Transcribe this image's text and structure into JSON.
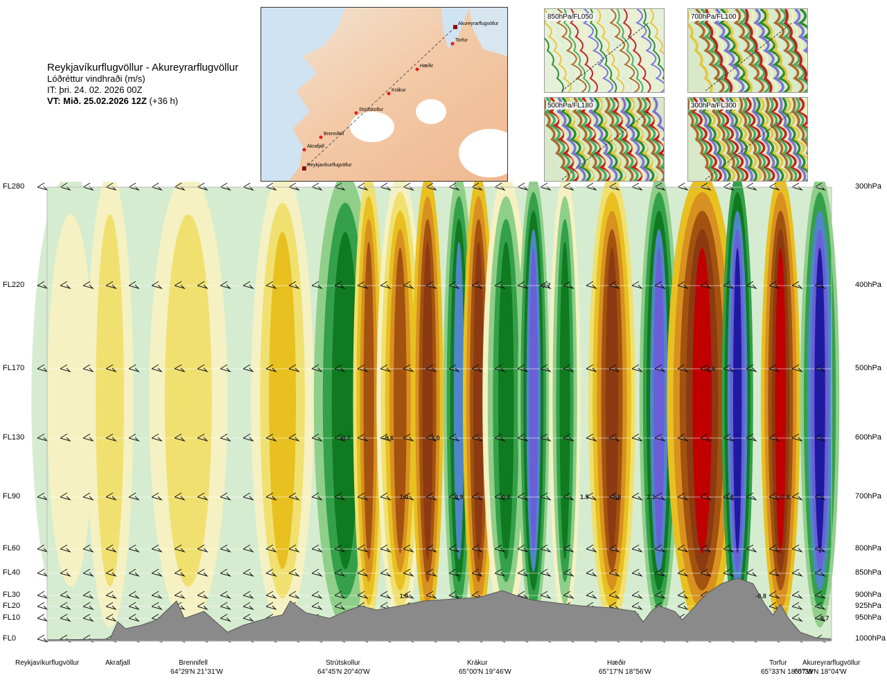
{
  "title": {
    "route": "Reykjavíkurflugvöllur - Akureyrarflugvöllur",
    "variable": "Lóðréttur vindhraði (m/s)",
    "issue_time": "IT: þri. 24. 02. 2026 00Z",
    "valid_time": "VT: Mið. 25.02.2026 12Z",
    "lead": "(+36 h)"
  },
  "route_map": {
    "waypoints": [
      "Reykjavíkurflugvöllur",
      "Akrafjall",
      "Brennifell",
      "Strútskollur",
      "Krákur",
      "Hæðir",
      "Torfur",
      "Akureyrarflugvöllur"
    ]
  },
  "mini_maps": [
    {
      "label": "850hPa/FL050"
    },
    {
      "label": "700hPa/FL100"
    },
    {
      "label": "500hPa/FL180"
    },
    {
      "label": "300hPa/FL300"
    }
  ],
  "chart_data": {
    "type": "heatmap",
    "title": "Lóðréttur vindhraði (m/s)",
    "y_left_labels": [
      "FL280",
      "FL220",
      "FL170",
      "FL130",
      "FL90",
      "FL60",
      "FL40",
      "FL30",
      "FL20",
      "FL10",
      "FL0"
    ],
    "y_right_labels": [
      "300hPa",
      "400hPa",
      "500hPa",
      "600hPa",
      "700hPa",
      "800hPa",
      "850hPa",
      "900hPa",
      "925hPa",
      "950hPa",
      "1000hPa"
    ],
    "stations": [
      {
        "name": "Reykjavíkurflugvöllur",
        "coord": ""
      },
      {
        "name": "Akrafjall",
        "coord": ""
      },
      {
        "name": "Brennifell",
        "coord": "64°29'N 21°31'W"
      },
      {
        "name": "Strútskollur",
        "coord": "64°45'N 20°40'W"
      },
      {
        "name": "Krákur",
        "coord": "65°00'N 19°46'W"
      },
      {
        "name": "Hæðir",
        "coord": "65°17'N 18°56'W"
      },
      {
        "name": "Torfur",
        "coord": "65°33'N 18°07'W"
      },
      {
        "name": "Akureyrarflugvöllur",
        "coord": "65°39'N 18°04'W"
      }
    ],
    "contour_labels": [
      "-0.7",
      "-0.6",
      "1.0",
      "1.0",
      "1.0",
      "0.9",
      "0.6",
      "-0.7",
      "1.5",
      "-1.6",
      "2.1",
      "-2.6",
      "1.8",
      "-0.6",
      "-0.8",
      "-0.7"
    ],
    "colors": {
      "strong_up": "#1e1aa0",
      "up3": "#6b5fd8",
      "up2": "#4f86c8",
      "up1": "#0f7a1f",
      "up0": "#34a04a",
      "upw": "#8fcf8a",
      "neutral1": "#d6ecd0",
      "neutral2": "#f5f1c2",
      "dn0": "#f0e070",
      "dn1": "#e8c020",
      "dn2": "#d89020",
      "dn3": "#a3520f",
      "dn4": "#8b3a12",
      "strong_dn": "#c00000",
      "terrain": "#8a8a8a"
    }
  }
}
